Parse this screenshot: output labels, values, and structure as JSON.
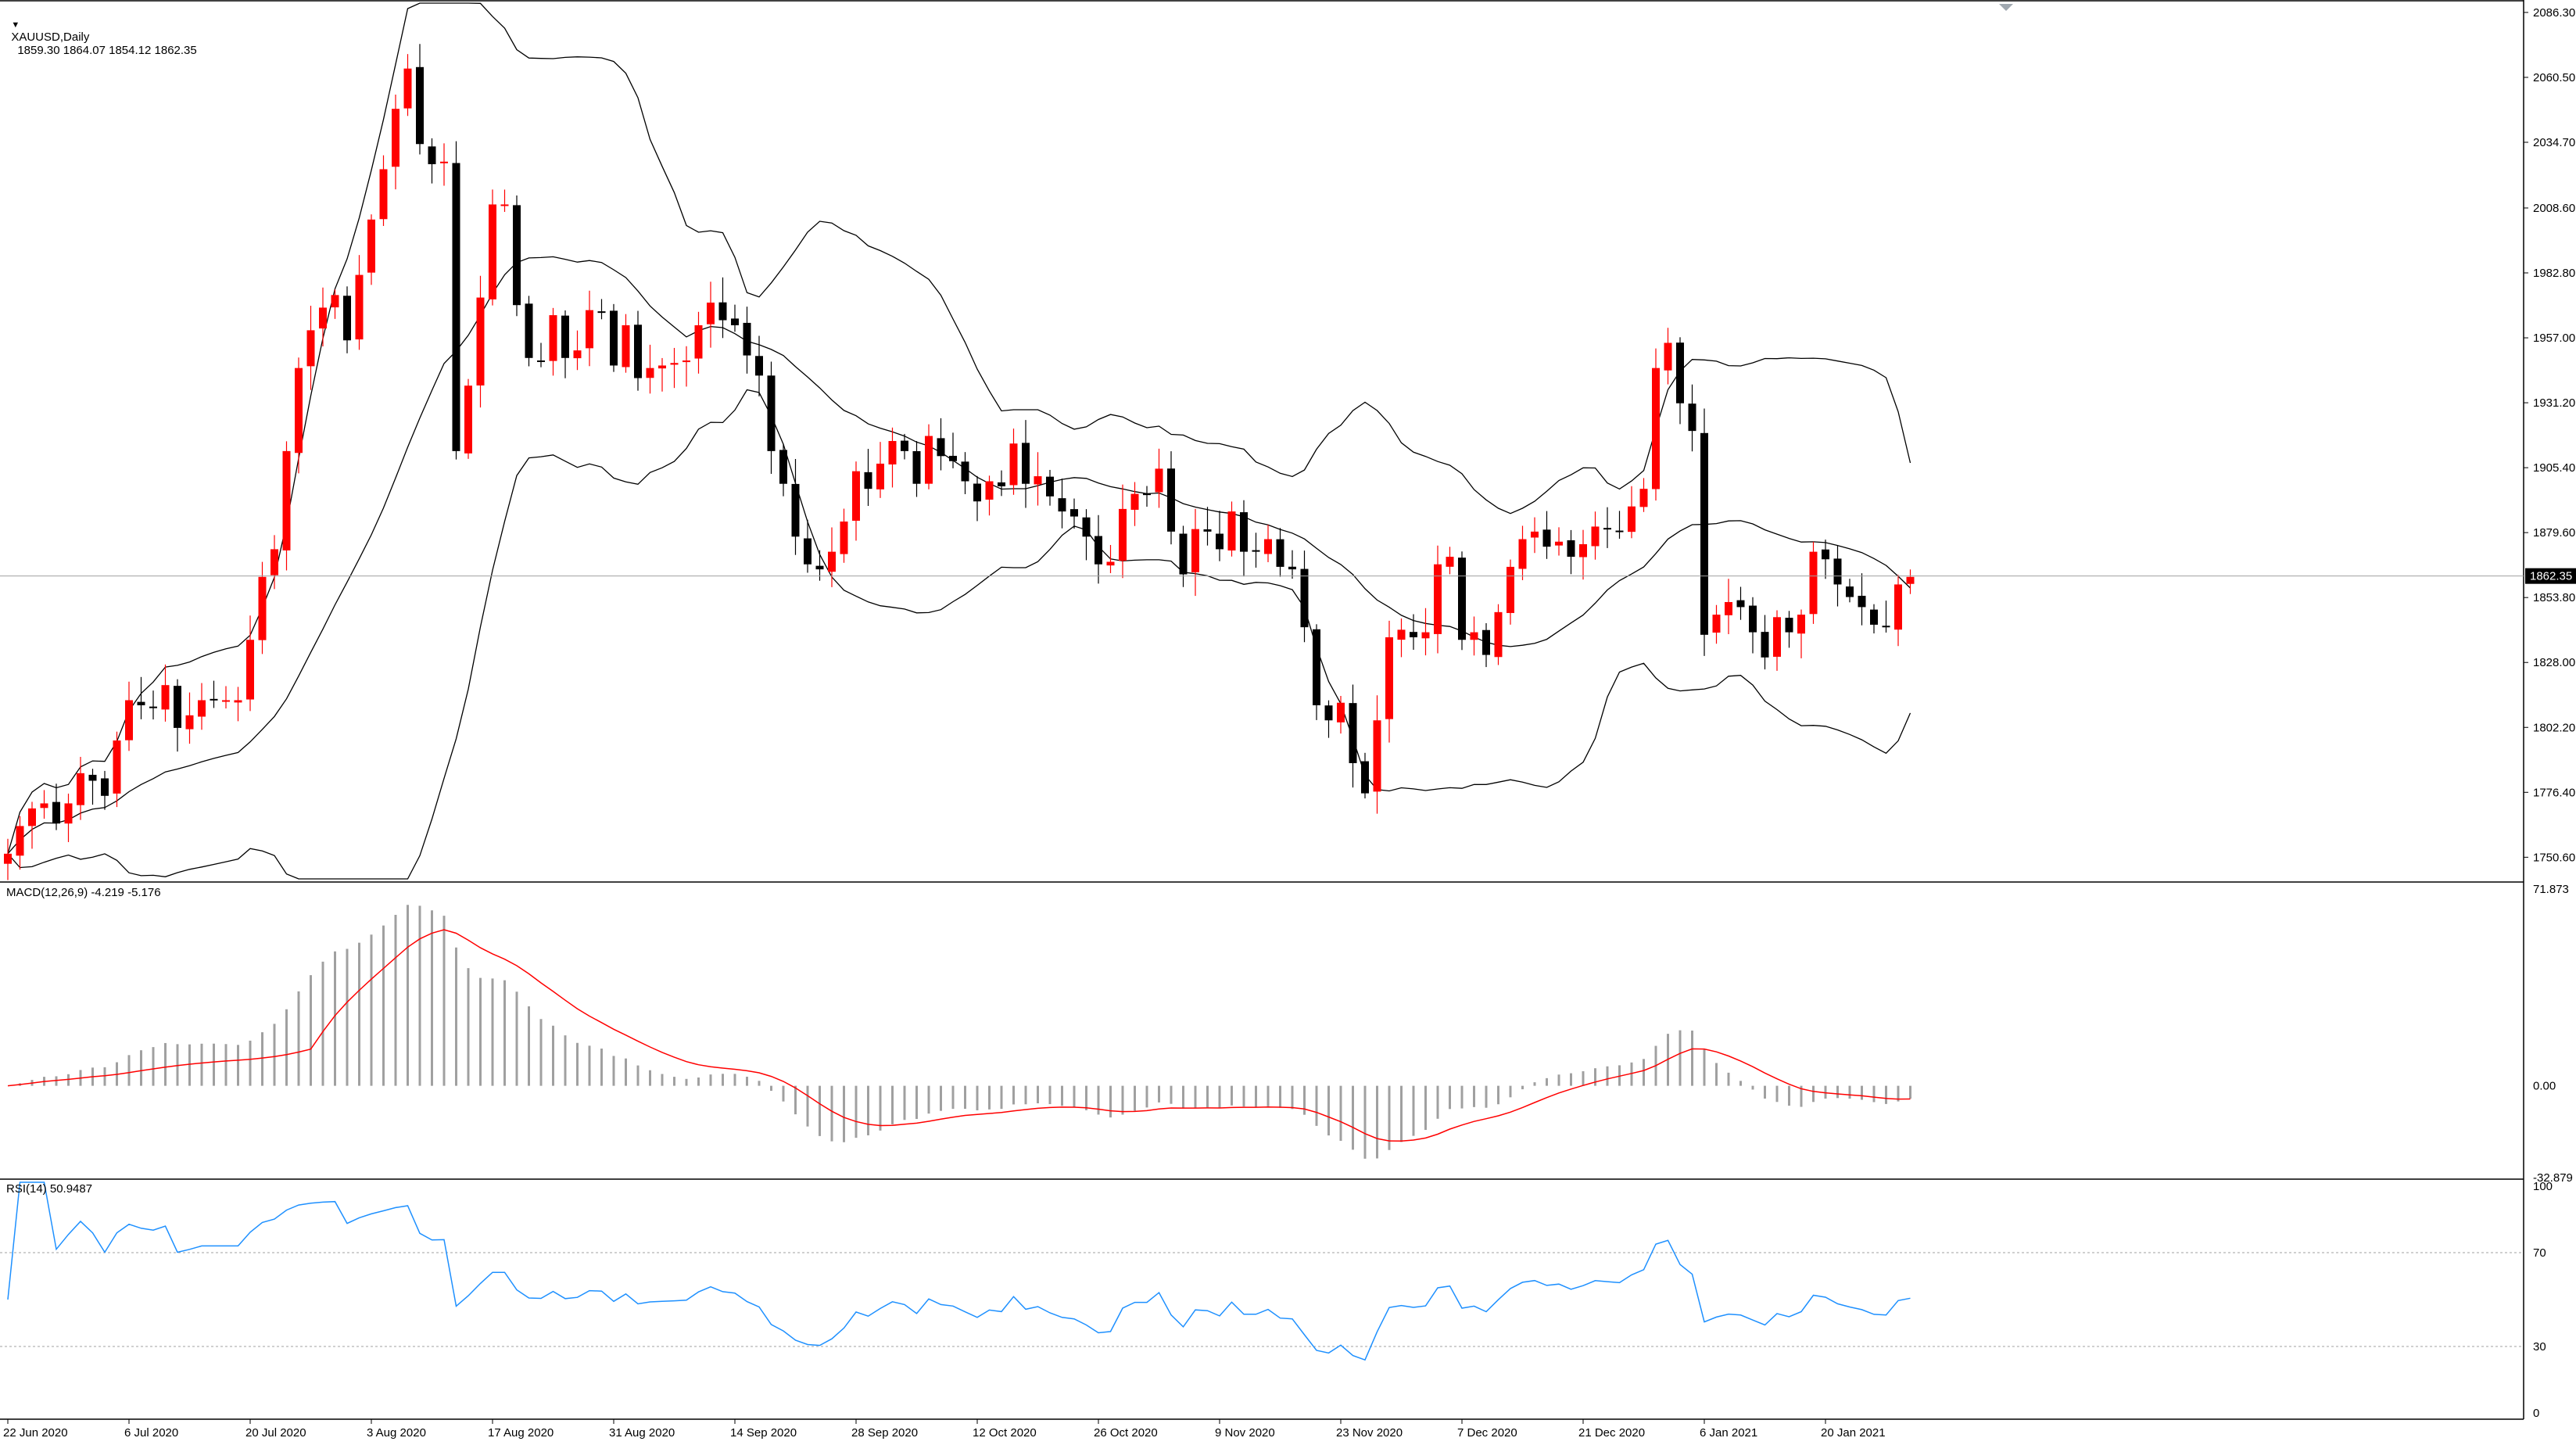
{
  "symbol_header": {
    "symbol": "XAUUSD,Daily",
    "ohlc": "1859.30 1864.07 1854.12 1862.35",
    "menu_glyph": "▼"
  },
  "indicators": {
    "macd_label": "MACD(12,26,9) -4.219 -5.176",
    "rsi_label": "RSI(14) 50.9487"
  },
  "colors": {
    "bull_candle": "#ff0000",
    "bear_candle": "#000000",
    "bollinger": "#000000",
    "macd_histogram": "#a0a0a0",
    "macd_signal": "#ff0000",
    "rsi_line": "#1e90ff",
    "current_price_label_bg": "#000000"
  },
  "chart_data": [
    {
      "type": "candlestick",
      "price_ticks": [
        "2086.30",
        "2060.50",
        "2034.70",
        "2008.60",
        "1982.80",
        "1957.00",
        "1931.20",
        "1905.40",
        "1879.60",
        "1853.80",
        "1828.00",
        "1802.20",
        "1776.40",
        "1750.60"
      ],
      "current_price": "1862.35",
      "ylim": [
        1742,
        2090
      ],
      "x_labels": [
        "22 Jun 2020",
        "6 Jul 2020",
        "20 Jul 2020",
        "3 Aug 2020",
        "17 Aug 2020",
        "31 Aug 2020",
        "14 Sep 2020",
        "28 Sep 2020",
        "12 Oct 2020",
        "26 Oct 2020",
        "9 Nov 2020",
        "23 Nov 2020",
        "7 Dec 2020",
        "21 Dec 2020",
        "6 Jan 2021",
        "20 Jan 2021"
      ],
      "close_series": [
        1752,
        1763,
        1770,
        1772,
        1764,
        1772,
        1784,
        1781,
        1775,
        1797,
        1813,
        1811,
        1810,
        1819,
        1802,
        1807,
        1813,
        1813,
        1813,
        1813,
        1837,
        1862,
        1873,
        1912,
        1945,
        1960,
        1969,
        1974,
        1956,
        1982,
        2004,
        2024,
        2048,
        2064,
        2034,
        2026,
        2027,
        1912,
        1938,
        1973,
        2010,
        2010,
        1970,
        1949,
        1948,
        1966,
        1949,
        1952,
        1968,
        1967,
        1946,
        1962,
        1941,
        1945,
        1946,
        1947,
        1948,
        1962,
        1971,
        1964,
        1962,
        1950,
        1942,
        1912,
        1899,
        1878,
        1867,
        1865,
        1872,
        1884,
        1904,
        1897,
        1907,
        1916,
        1912,
        1899,
        1918,
        1910,
        1908,
        1900,
        1892,
        1900,
        1898,
        1915,
        1899,
        1902,
        1894,
        1888,
        1886,
        1878,
        1867,
        1868,
        1889,
        1895,
        1895,
        1905,
        1880,
        1863,
        1881,
        1880,
        1873,
        1888,
        1872,
        1872,
        1877,
        1866,
        1865,
        1842,
        1811,
        1805,
        1812,
        1788,
        1776,
        1805,
        1838,
        1841,
        1838,
        1840,
        1867,
        1870,
        1837,
        1840,
        1831,
        1848,
        1866,
        1877,
        1880,
        1874,
        1876,
        1870,
        1875,
        1882,
        1881,
        1880,
        1890,
        1897,
        1945,
        1955,
        1931,
        1920,
        1839,
        1847,
        1852,
        1850,
        1840,
        1830,
        1846,
        1840,
        1847,
        1872,
        1869,
        1859,
        1854,
        1850,
        1843,
        1842,
        1859,
        1862
      ],
      "macd_axis": [
        "71.873",
        "0.00",
        "-32.879"
      ],
      "rsi_axis": [
        "100",
        "70",
        "30",
        "0"
      ]
    }
  ]
}
